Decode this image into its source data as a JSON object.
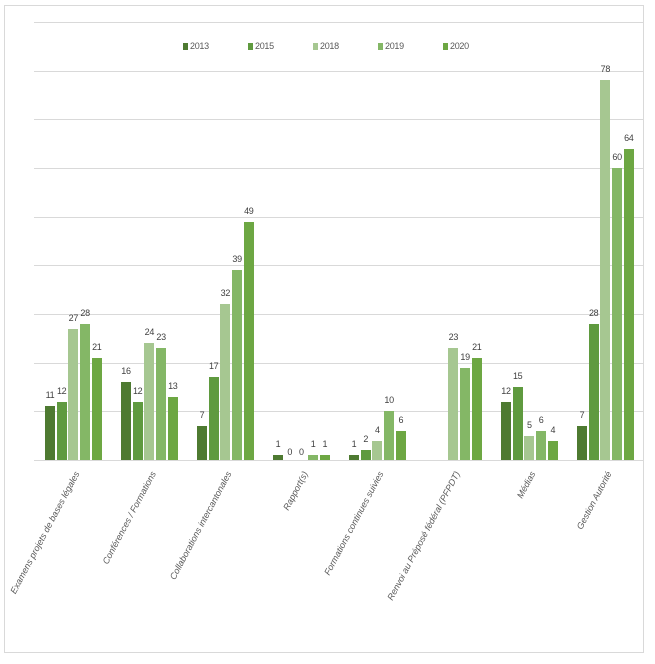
{
  "chart_data": {
    "type": "bar",
    "title": "",
    "xlabel": "",
    "ylabel": "",
    "ylim": [
      0,
      90
    ],
    "grid": true,
    "gridline_step": 10,
    "legend_position": "top",
    "categories": [
      "Examens projets de bases légales",
      "Conférences / Formations",
      "Collaborations intercantonales",
      "Rapport(s)",
      "Formations continues suivies",
      "Renvoi au Préposé fédéral (PFPDT)",
      "Médias",
      "Gestion Autorité"
    ],
    "series": [
      {
        "name": "2013",
        "color": "#4e7a31",
        "values": [
          11,
          16,
          7,
          1,
          1,
          null,
          12,
          7
        ]
      },
      {
        "name": "2015",
        "color": "#5f9a3f",
        "values": [
          12,
          12,
          17,
          0,
          2,
          null,
          15,
          28
        ]
      },
      {
        "name": "2018",
        "color": "#a6c791",
        "values": [
          27,
          24,
          32,
          0,
          4,
          23,
          5,
          78
        ]
      },
      {
        "name": "2019",
        "color": "#84b766",
        "values": [
          28,
          23,
          39,
          1,
          10,
          19,
          6,
          60
        ]
      },
      {
        "name": "2020",
        "color": "#6da743",
        "values": [
          21,
          13,
          49,
          1,
          6,
          21,
          4,
          64
        ]
      }
    ]
  }
}
